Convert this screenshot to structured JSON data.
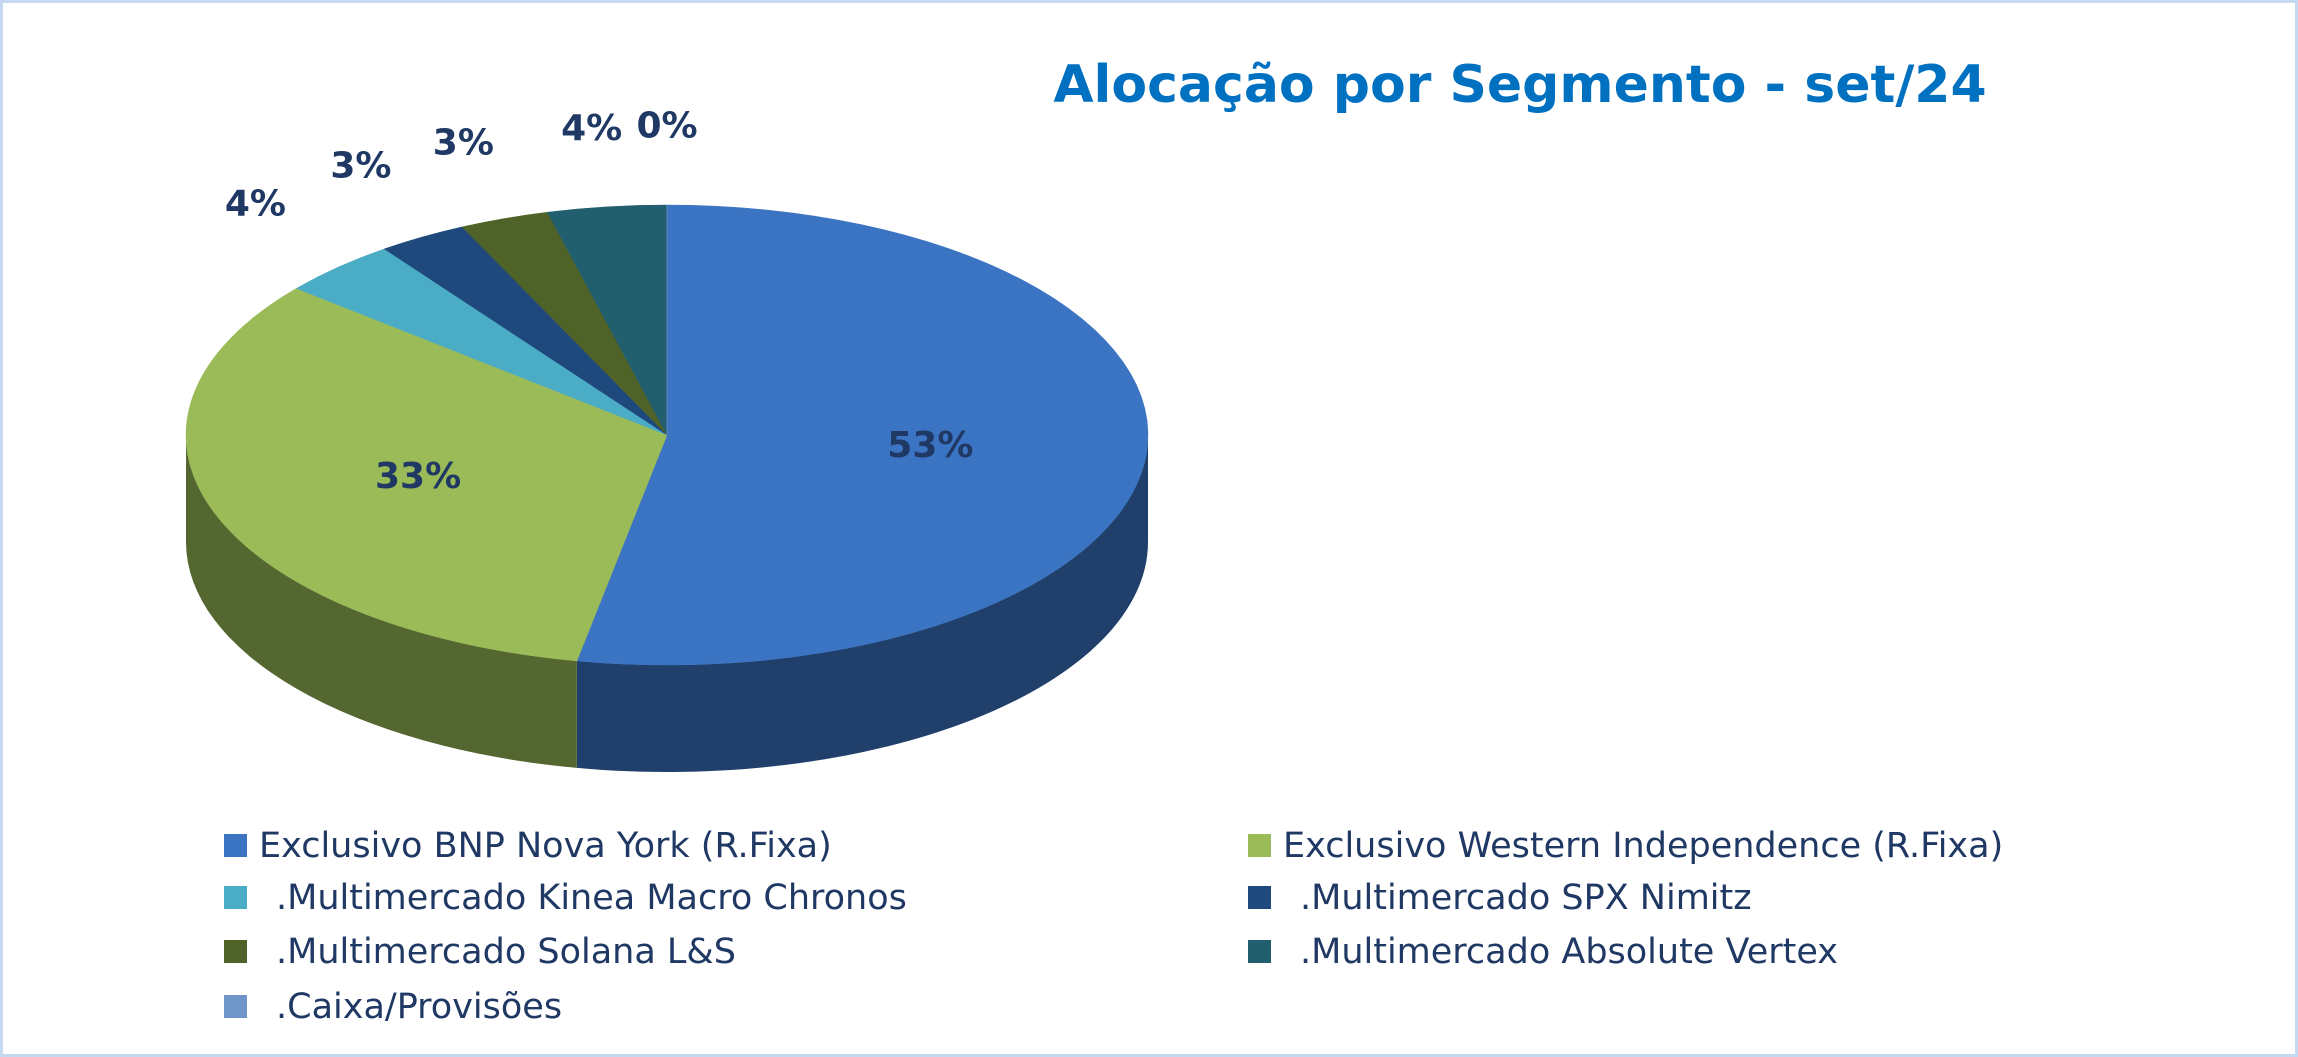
{
  "chart_data": {
    "type": "pie",
    "title": "Alocação por Segmento - set/24",
    "categories": [
      "Exclusivo BNP Nova York (R.Fixa)",
      "Exclusivo Western Independence (R.Fixa)",
      ".Multimercado Kinea Macro Chronos",
      ".Multimercado SPX Nimitz",
      ".Multimercado Solana L&S",
      ".Multimercado Absolute Vertex",
      ".Caixa/Provisões"
    ],
    "values": [
      53,
      33,
      4,
      3,
      3,
      4,
      0
    ],
    "value_labels": [
      "53%",
      "33%",
      "4%",
      "3%",
      "3%",
      "4%",
      "0%"
    ],
    "colors": [
      "#3b74c2",
      "#9bbb59",
      "#4bacc6",
      "#1f497d",
      "#4f6228",
      "#215e6e",
      "#6f95c9"
    ],
    "legend": "bottom"
  }
}
